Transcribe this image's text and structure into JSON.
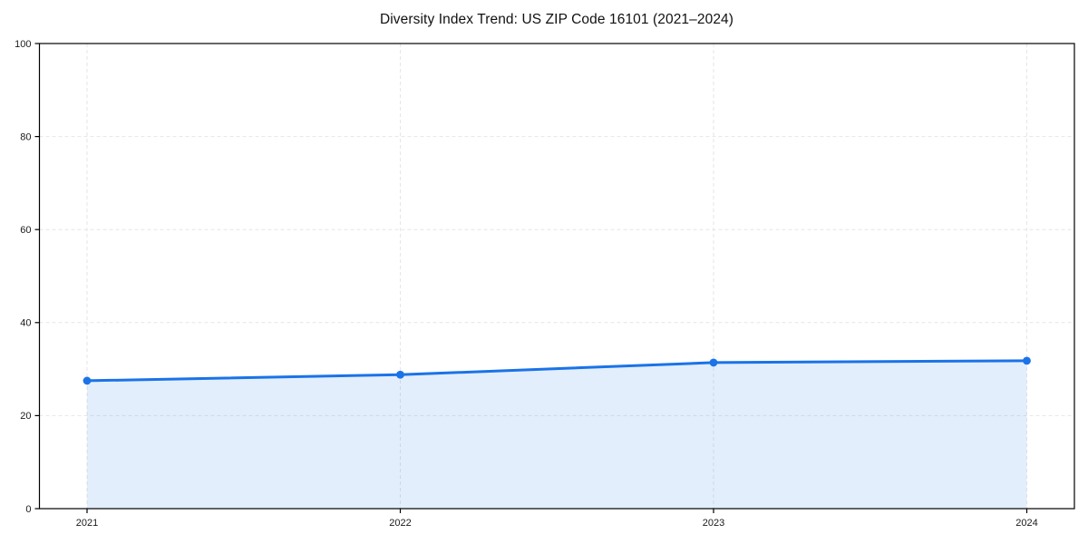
{
  "chart_data": {
    "type": "area",
    "title": "Diversity Index Trend: US ZIP Code 16101 (2021–2024)",
    "x": [
      "2021",
      "2022",
      "2023",
      "2024"
    ],
    "series": [
      {
        "name": "Diversity Index",
        "values": [
          27.5,
          28.8,
          31.4,
          31.8
        ]
      }
    ],
    "ylim": [
      0,
      100
    ],
    "yticks": [
      0,
      20,
      40,
      60,
      80,
      100
    ],
    "xlabel": "",
    "ylabel": "",
    "grid": true,
    "grid_linestyle": "dashed",
    "legend_position": "none",
    "colors": {
      "line": "#1a73e8",
      "marker": "#1a73e8",
      "area_fill": "rgba(26,115,232,0.12)",
      "grid": "#e6e6e6",
      "axis": "#000000",
      "tick_label": "#1a1a1a",
      "title": "#111111",
      "background": "#ffffff"
    }
  }
}
